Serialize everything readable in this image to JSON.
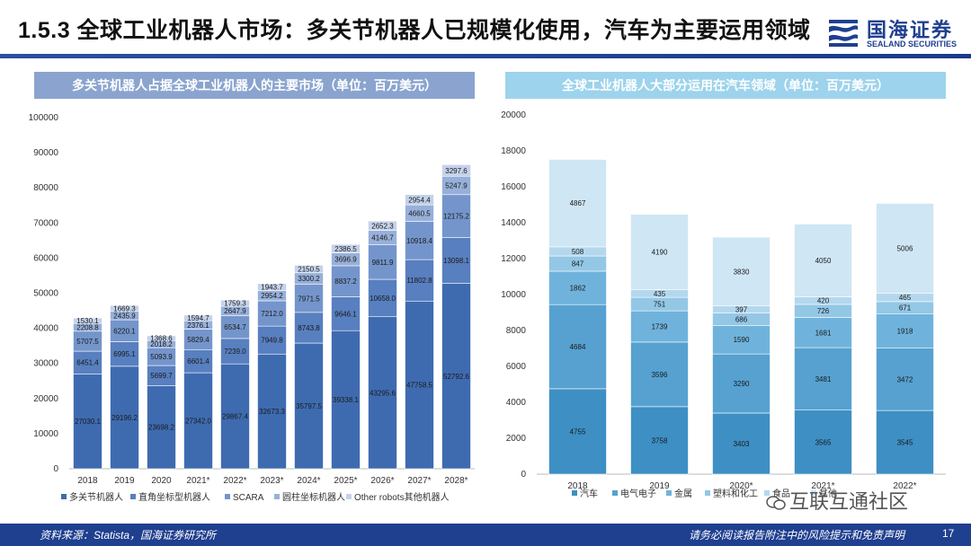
{
  "header": {
    "title": "1.5.3 全球工业机器人市场：多关节机器人已规模化使用，汽车为主要运用领域",
    "logo_cn": "国海证券",
    "logo_en": "SEALAND SECURITIES"
  },
  "colors": {
    "brand": "#1f3f8f",
    "left_panel": "#8aa4cf",
    "right_panel": "#9dd3ec"
  },
  "chart_data": [
    {
      "type": "bar",
      "stacked": true,
      "title": "多关节机器人占据全球工业机器人的主要市场（单位：百万美元）",
      "categories": [
        "2018",
        "2019",
        "2020",
        "2021*",
        "2022*",
        "2023*",
        "2024*",
        "2025*",
        "2026*",
        "2027*",
        "2028*"
      ],
      "ylim": [
        0,
        100000
      ],
      "yticks": [
        0,
        10000,
        20000,
        30000,
        40000,
        50000,
        60000,
        70000,
        80000,
        90000,
        100000
      ],
      "series": [
        {
          "name": "多关节机器人",
          "color": "#3e6bb0",
          "values": [
            27030.1,
            29196.2,
            23698.2,
            27342.0,
            29867.4,
            32673.3,
            35797.5,
            39338.1,
            43295.6,
            47758.5,
            52792.6
          ]
        },
        {
          "name": "直角坐标型机器人",
          "color": "#587fbf",
          "values": [
            6451.4,
            6995.1,
            5699.7,
            6601.4,
            7239.0,
            7949.8,
            8743.8,
            9646.1,
            10658.0,
            11802.8,
            13098.1
          ]
        },
        {
          "name": "SCARA",
          "color": "#7495cc",
          "values": [
            5707.5,
            6220.1,
            5093.9,
            5829.4,
            6534.7,
            7212.0,
            7971.5,
            8837.2,
            9811.9,
            10918.4,
            12175.2
          ]
        },
        {
          "name": "圆柱坐标机器人",
          "color": "#97b0da",
          "values": [
            2208.8,
            2435.9,
            2018.2,
            2376.1,
            2647.9,
            2954.2,
            3300.2,
            3696.9,
            4146.7,
            4660.5,
            5247.9
          ]
        },
        {
          "name": "Other robots其他机器人",
          "color": "#c4d2ea",
          "values": [
            1530.1,
            1669.3,
            1368.6,
            1594.7,
            1759.3,
            1943.7,
            2150.5,
            2386.5,
            2652.3,
            2954.4,
            3297.6
          ]
        }
      ]
    },
    {
      "type": "bar",
      "stacked": true,
      "title": "全球工业机器人大部分运用在汽车领域（单位：百万美元）",
      "categories": [
        "2018",
        "2019",
        "2020*",
        "2021*",
        "2022*"
      ],
      "ylim": [
        0,
        20000
      ],
      "yticks": [
        0,
        2000,
        4000,
        6000,
        8000,
        10000,
        12000,
        14000,
        16000,
        18000,
        20000
      ],
      "series": [
        {
          "name": "汽车",
          "color": "#3d8fc4",
          "values": [
            4755,
            3758,
            3403,
            3565,
            3545
          ]
        },
        {
          "name": "电气电子",
          "color": "#56a1d0",
          "values": [
            4684,
            3596,
            3290,
            3481,
            3472
          ]
        },
        {
          "name": "金属",
          "color": "#6fb3dc",
          "values": [
            1862,
            1739,
            1590,
            1681,
            1918
          ]
        },
        {
          "name": "塑料和化工",
          "color": "#93c7e6",
          "values": [
            847,
            751,
            686,
            726,
            671
          ]
        },
        {
          "name": "食品",
          "color": "#b3d8ee",
          "values": [
            508,
            435,
            397,
            420,
            465
          ]
        },
        {
          "name": "其他",
          "color": "#cfe6f4",
          "values": [
            4867,
            4190,
            3830,
            4050,
            5006
          ]
        }
      ]
    }
  ],
  "watermark": "互联互通社区",
  "footer": {
    "source": "资料来源：Statista，国海证券研究所",
    "disclaimer": "请务必阅读报告附注中的风险提示和免责声明",
    "page": "17"
  }
}
